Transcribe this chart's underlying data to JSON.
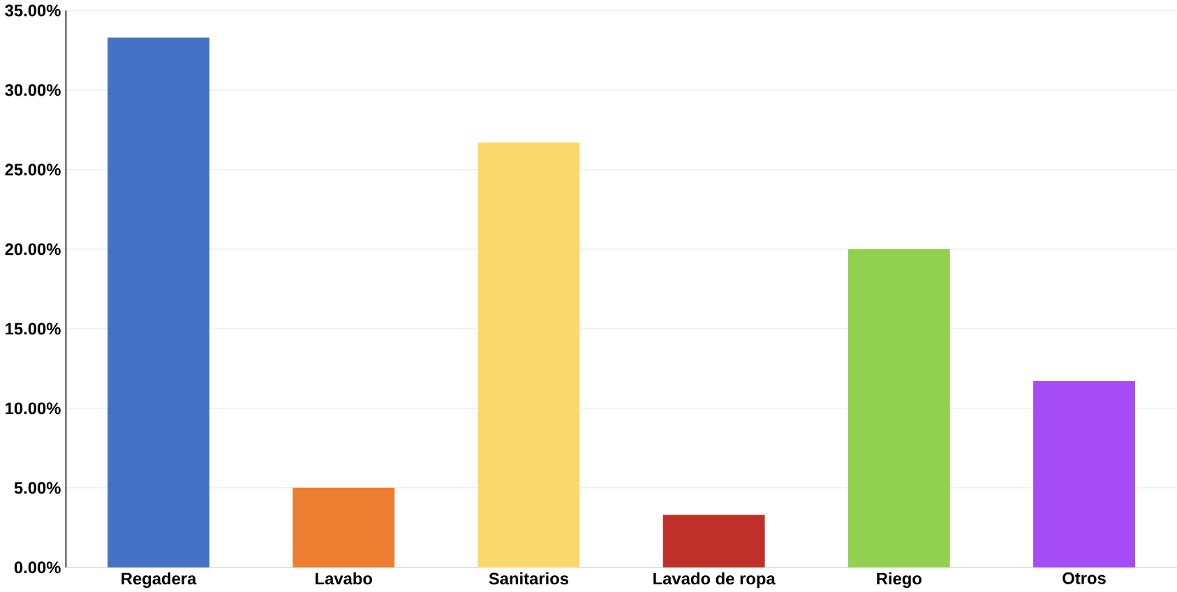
{
  "chart_data": {
    "type": "bar",
    "categories": [
      "Regadera",
      "Lavabo",
      "Sanitarios",
      "Lavado de ropa",
      "Riego",
      "Otros"
    ],
    "values": [
      33.3,
      5.0,
      26.7,
      3.3,
      20.0,
      11.7
    ],
    "colors": [
      "#4472c4",
      "#ed7d31",
      "#fbd86b",
      "#c0302b",
      "#92d050",
      "#a64cf4"
    ],
    "ylim": [
      0,
      35
    ],
    "yticks": [
      {
        "value": 0,
        "label": "0.00%"
      },
      {
        "value": 5,
        "label": "5.00%"
      },
      {
        "value": 10,
        "label": "10.00%"
      },
      {
        "value": 15,
        "label": "15.00%"
      },
      {
        "value": 20,
        "label": "20.00%"
      },
      {
        "value": 25,
        "label": "25.00%"
      },
      {
        "value": 30,
        "label": "30.00%"
      },
      {
        "value": 35,
        "label": "35.00%"
      }
    ],
    "grid": "y"
  }
}
